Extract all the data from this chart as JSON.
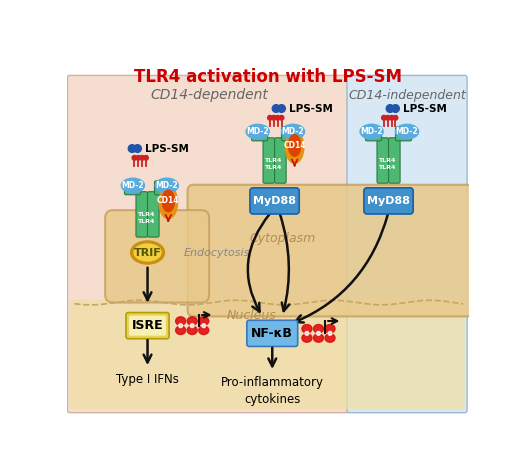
{
  "title": "TLR4 activation with LPS-SM",
  "title_color": "#cc0000",
  "bg_color": "#ffffff",
  "cd14_dep_label": "CD14-dependent",
  "cd14_indep_label": "CD14-independent",
  "cd14_dep_bg": "#f5ddd0",
  "cd14_indep_bg": "#d8e8f4",
  "cytoplasm_bg": "#e8c98a",
  "nucleus_bg": "#f0dfa0",
  "nucleus_label": "Nucleus",
  "cytoplasm_label": "Cytoplasm",
  "endocytosis_label": "Endocytosis",
  "lps_sm_label": "LPS-SM",
  "md2_color": "#5aacdd",
  "tlr4_color": "#4db870",
  "cd14_outer": "#e89010",
  "cd14_inner": "#dd4400",
  "trif_outer": "#c89010",
  "trif_inner": "#f0d040",
  "myd88_color": "#4090cc",
  "isre_color_top": "#f8f0b0",
  "isre_color_bot": "#e8d060",
  "nfkb_color": "#70b8e8",
  "arrow_color": "#111111",
  "dna_color": "#dd1111",
  "lps_blue": "#2255aa",
  "lps_red": "#cc2222",
  "membrane_color": "#c8a060",
  "nucleus_dash_color": "#c0a868"
}
